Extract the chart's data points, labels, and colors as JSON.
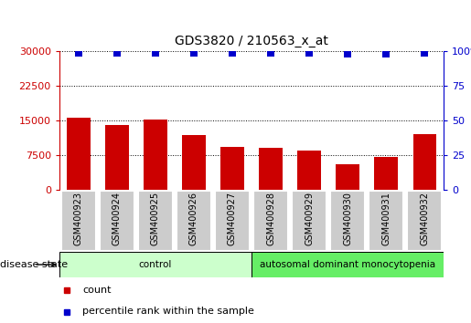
{
  "title": "GDS3820 / 210563_x_at",
  "samples": [
    "GSM400923",
    "GSM400924",
    "GSM400925",
    "GSM400926",
    "GSM400927",
    "GSM400928",
    "GSM400929",
    "GSM400930",
    "GSM400931",
    "GSM400932"
  ],
  "counts": [
    15500,
    14000,
    15200,
    11800,
    9200,
    9000,
    8500,
    5500,
    7200,
    12000
  ],
  "percentile_ranks": [
    99,
    99,
    99,
    99,
    99,
    99,
    99,
    98,
    98,
    99
  ],
  "bar_color": "#cc0000",
  "dot_color": "#0000cc",
  "left_ylim": [
    0,
    30000
  ],
  "left_yticks": [
    0,
    7500,
    15000,
    22500,
    30000
  ],
  "right_ylim": [
    0,
    100
  ],
  "right_yticks": [
    0,
    25,
    50,
    75,
    100
  ],
  "group_labels": [
    "control",
    "autosomal dominant monocytopenia"
  ],
  "group_counts": [
    5,
    5
  ],
  "group_colors_light": [
    "#ccffcc",
    "#66ee66"
  ],
  "disease_state_label": "disease state",
  "legend_count_label": "count",
  "legend_percentile_label": "percentile rank within the sample",
  "background_color": "#ffffff",
  "bar_width": 0.6,
  "dot_size": 40,
  "dot_marker": "s",
  "xtick_bg_color": "#cccccc",
  "xtick_border_color": "#ffffff"
}
